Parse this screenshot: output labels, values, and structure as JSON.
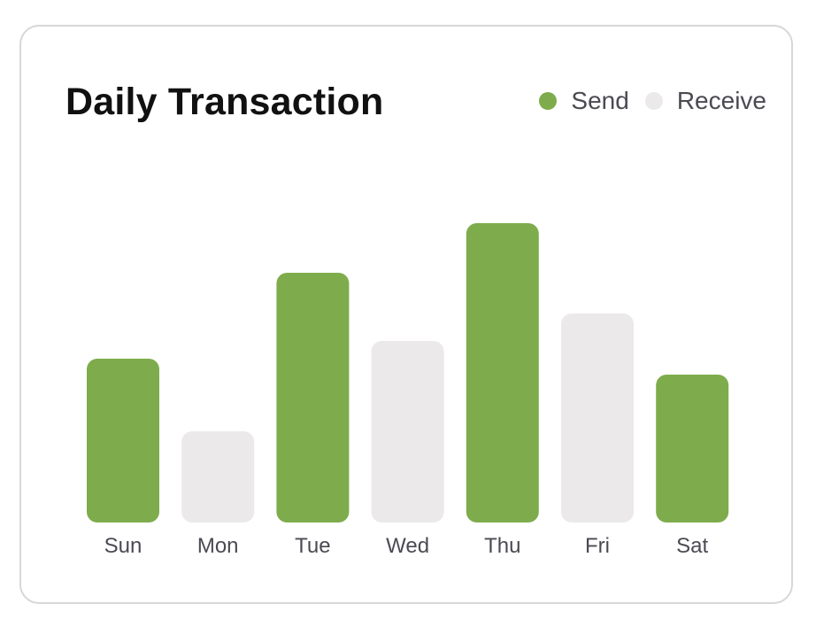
{
  "chart_data": {
    "type": "bar",
    "title": "Daily Transaction",
    "categories": [
      "Sun",
      "Mon",
      "Tue",
      "Wed",
      "Thu",
      "Fri",
      "Sat"
    ],
    "values": [
      185,
      103,
      282,
      205,
      338,
      236,
      167
    ],
    "bar_series": [
      "Send",
      "Receive",
      "Send",
      "Receive",
      "Send",
      "Receive",
      "Send"
    ],
    "ylim": [
      0,
      400
    ],
    "grid": false,
    "legend_placement": "top-right",
    "legend": [
      {
        "name": "Send",
        "color": "#7eac4c"
      },
      {
        "name": "Receive",
        "color": "#ebe9ea"
      }
    ]
  }
}
